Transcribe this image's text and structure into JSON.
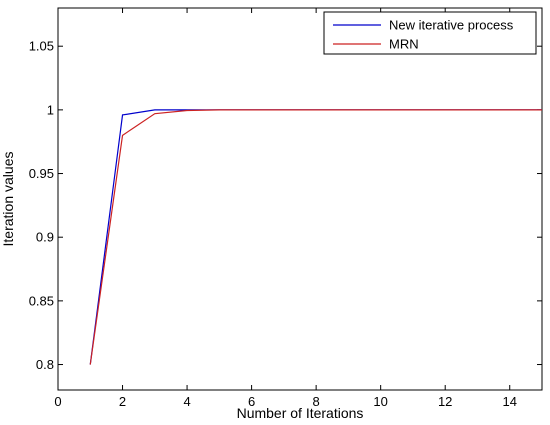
{
  "chart_data": {
    "type": "line",
    "xlabel": "Number of Iterations",
    "ylabel": "Iteration values",
    "xlim": [
      0,
      15
    ],
    "ylim": [
      0.78,
      1.08
    ],
    "xticks": [
      0,
      2,
      4,
      6,
      8,
      10,
      12,
      14
    ],
    "yticks": [
      0.8,
      0.85,
      0.9,
      0.95,
      1,
      1.05
    ],
    "xtick_labels": [
      "0",
      "2",
      "4",
      "6",
      "8",
      "10",
      "12",
      "14"
    ],
    "ytick_labels": [
      "0.8",
      "0.85",
      "0.9",
      "0.95",
      "1",
      "1.05"
    ],
    "grid": false,
    "legend_position": "top-right",
    "series": [
      {
        "name": "New iterative process",
        "color": "#0000cc",
        "x": [
          1,
          2,
          3,
          4,
          5,
          6,
          7,
          8,
          9,
          10,
          11,
          12,
          13,
          14,
          15
        ],
        "y": [
          0.8,
          0.996,
          1.0,
          1.0,
          1.0,
          1.0,
          1.0,
          1.0,
          1.0,
          1.0,
          1.0,
          1.0,
          1.0,
          1.0,
          1.0
        ]
      },
      {
        "name": "MRN",
        "color": "#cc2222",
        "x": [
          1,
          2,
          3,
          4,
          5,
          6,
          7,
          8,
          9,
          10,
          11,
          12,
          13,
          14,
          15
        ],
        "y": [
          0.8,
          0.98,
          0.997,
          0.9995,
          1.0,
          1.0,
          1.0,
          1.0,
          1.0,
          1.0,
          1.0,
          1.0,
          1.0,
          1.0,
          1.0
        ]
      }
    ]
  }
}
